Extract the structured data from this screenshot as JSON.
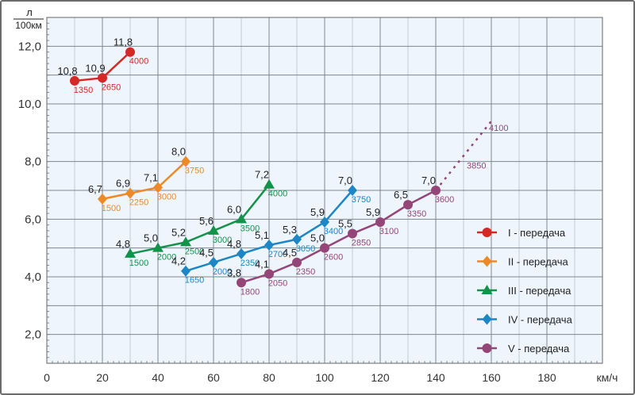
{
  "chart_data": {
    "type": "line",
    "ylabel_top": "л",
    "ylabel_bottom": "100км",
    "xlabel": "км/ч",
    "xlim": [
      0,
      200
    ],
    "ylim": [
      1,
      13
    ],
    "x_ticks": [
      0,
      20,
      40,
      60,
      80,
      100,
      120,
      140,
      160,
      180
    ],
    "y_ticks": [
      "2,0",
      "4,0",
      "6,0",
      "8,0",
      "10,0",
      "12,0"
    ],
    "y_tick_values": [
      2,
      4,
      6,
      8,
      10,
      12
    ],
    "grid": true,
    "legend_position": "bottom-right",
    "series": [
      {
        "name": "I - передача",
        "color": "#d42a27",
        "marker": "circle",
        "x": [
          10,
          20,
          30
        ],
        "y": [
          10.8,
          10.9,
          11.8
        ],
        "value_labels": [
          "10,8",
          "10,9",
          "11,8"
        ],
        "rpm_labels": [
          "1350",
          "2650",
          "4000"
        ]
      },
      {
        "name": "II - передача",
        "color": "#ec8a2a",
        "marker": "diamond",
        "x": [
          20,
          30,
          40,
          50
        ],
        "y": [
          6.7,
          6.9,
          7.1,
          8.0
        ],
        "value_labels": [
          "6,7",
          "6,9",
          "7,1",
          "8,0"
        ],
        "rpm_labels": [
          "1500",
          "2250",
          "3000",
          "3750"
        ]
      },
      {
        "name": "III - передача",
        "color": "#13924a",
        "marker": "triangle",
        "x": [
          30,
          40,
          50,
          60,
          70,
          80
        ],
        "y": [
          4.8,
          5.0,
          5.2,
          5.6,
          6.0,
          7.2
        ],
        "value_labels": [
          "4,8",
          "5,0",
          "5,2",
          "5,6",
          "6,0",
          "7,2"
        ],
        "rpm_labels": [
          "1500",
          "2000",
          "2500",
          "3000",
          "3500",
          "4000"
        ]
      },
      {
        "name": "IV - передача",
        "color": "#1d87c6",
        "marker": "diamond",
        "x": [
          50,
          60,
          70,
          80,
          90,
          100,
          110
        ],
        "y": [
          4.2,
          4.5,
          4.8,
          5.1,
          5.3,
          5.9,
          7.0
        ],
        "value_labels": [
          "4,2",
          "4,5",
          "4,8",
          "5,1",
          "5,3",
          "5,9",
          "7,0"
        ],
        "rpm_labels": [
          "1650",
          "2000",
          "2350",
          "2700",
          "3050",
          "3400",
          "3750"
        ]
      },
      {
        "name": "V - передача",
        "color": "#954679",
        "marker": "circle",
        "x": [
          70,
          80,
          90,
          100,
          110,
          120,
          130,
          140
        ],
        "y": [
          3.8,
          4.1,
          4.5,
          5.0,
          5.5,
          5.9,
          6.5,
          7.0
        ],
        "value_labels": [
          "3,8",
          "4,1",
          "4,5",
          "5,0",
          "5,5",
          "5,9",
          "6,5",
          "7,0"
        ],
        "rpm_labels": [
          "1800",
          "2050",
          "2350",
          "2600",
          "2850",
          "3100",
          "3350",
          "3600"
        ],
        "extrapolation": {
          "x": [
            140,
            160
          ],
          "y": [
            7.0,
            9.4
          ],
          "labels": [
            {
              "x": 150,
              "y": 7.9,
              "text": "3850"
            },
            {
              "x": 158,
              "y": 9.2,
              "text": "4100"
            }
          ]
        }
      }
    ]
  }
}
